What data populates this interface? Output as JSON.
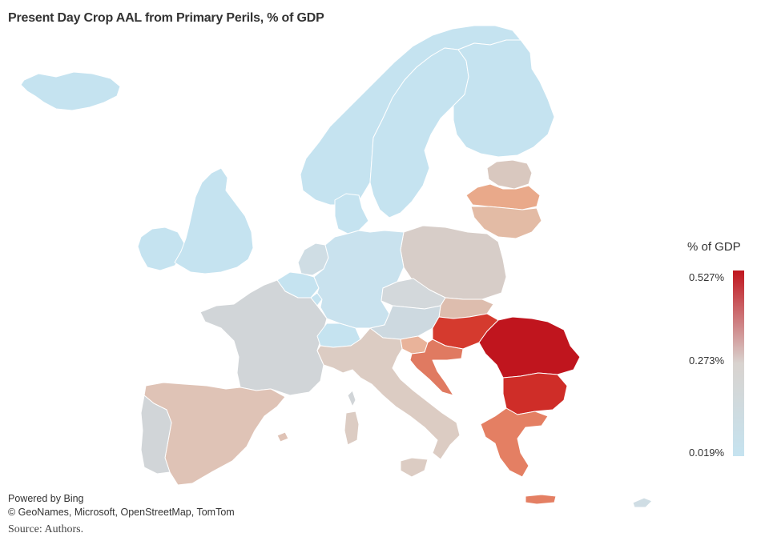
{
  "title": "Present Day Crop AAL from Primary Perils, % of GDP",
  "legend": {
    "title": "% of GDP",
    "max_label": "0.527%",
    "mid_label": "0.273%",
    "min_label": "0.019%",
    "min_color": "#c5e3f0",
    "mid_color": "#d9d3cf",
    "max_color": "#c0151e"
  },
  "attribution": {
    "powered_by": "Powered by Bing",
    "credits": "© GeoNames, Microsoft, OpenStreetMap, TomTom"
  },
  "source": "Source: Authors.",
  "map_data": {
    "countries": [
      {
        "name": "Iceland",
        "color": "#c5e3f0"
      },
      {
        "name": "Norway",
        "color": "#c5e3f0"
      },
      {
        "name": "Sweden",
        "color": "#c5e3f0"
      },
      {
        "name": "Finland",
        "color": "#c5e3f0"
      },
      {
        "name": "Ireland",
        "color": "#c5e3f0"
      },
      {
        "name": "United Kingdom",
        "color": "#c5e3f0"
      },
      {
        "name": "Denmark",
        "color": "#c5e3f0"
      },
      {
        "name": "Estonia",
        "color": "#d9c8bf"
      },
      {
        "name": "Latvia",
        "color": "#e9a98a"
      },
      {
        "name": "Lithuania",
        "color": "#e3bba5"
      },
      {
        "name": "Poland",
        "color": "#d7cdc8"
      },
      {
        "name": "Germany",
        "color": "#c9e2ee"
      },
      {
        "name": "Netherlands",
        "color": "#cfdde4"
      },
      {
        "name": "Belgium",
        "color": "#c5e3f0"
      },
      {
        "name": "Luxembourg",
        "color": "#c5e3f0"
      },
      {
        "name": "France",
        "color": "#d1d5d8"
      },
      {
        "name": "Czechia",
        "color": "#d3d8db"
      },
      {
        "name": "Slovakia",
        "color": "#ddbdae"
      },
      {
        "name": "Austria",
        "color": "#cdd9e0"
      },
      {
        "name": "Switzerland",
        "color": "#c5e3f0"
      },
      {
        "name": "Hungary",
        "color": "#d53a2e"
      },
      {
        "name": "Romania",
        "color": "#c0151e"
      },
      {
        "name": "Bulgaria",
        "color": "#cf2d28"
      },
      {
        "name": "Slovenia",
        "color": "#e9b39a"
      },
      {
        "name": "Croatia",
        "color": "#e07a61"
      },
      {
        "name": "Italy",
        "color": "#dcccc3"
      },
      {
        "name": "Spain",
        "color": "#dfc3b6"
      },
      {
        "name": "Portugal",
        "color": "#d1d5d8"
      },
      {
        "name": "Greece",
        "color": "#e47f63"
      },
      {
        "name": "Cyprus",
        "color": "#cfdde4"
      }
    ]
  }
}
